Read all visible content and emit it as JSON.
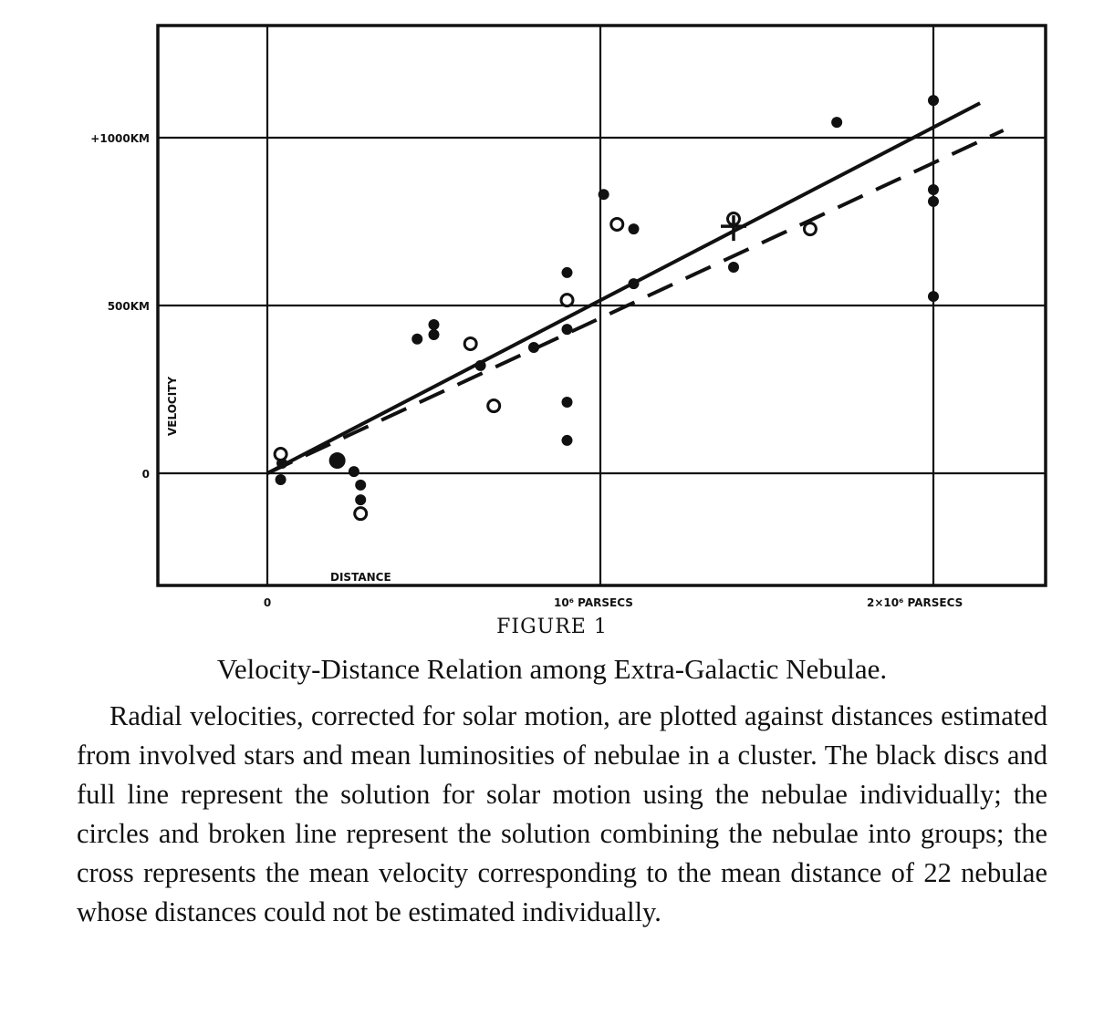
{
  "figure": {
    "label": "FIGURE 1",
    "title": "Velocity-Distance Relation among Extra-Galactic Nebulae.",
    "caption": "Radial velocities, corrected for solar motion, are plotted against distances estimated from involved stars and mean luminosities of nebulae in a cluster.  The black discs and full line represent the solution for solar motion using the nebulae individually; the circles and broken line represent the solution combining the nebulae into groups; the cross represents the mean velocity corresponding to the mean distance of 22 nebulae whose distances could not be estimated individually."
  },
  "axes": {
    "y_title": "VELOCITY",
    "x_title": "DISTANCE",
    "y_ticks": [
      {
        "value": 0,
        "label": "0"
      },
      {
        "value": 500,
        "label": "500KM"
      },
      {
        "value": 1000,
        "label": "+1000KM"
      }
    ],
    "x_ticks": [
      {
        "value": 0,
        "label": "0"
      },
      {
        "value": 1,
        "label": "10⁶ PARSECS"
      },
      {
        "value": 2,
        "label": "2×10⁶ PARSECS"
      }
    ]
  },
  "chart_data": {
    "type": "scatter",
    "title": "Velocity-Distance Relation among Extra-Galactic Nebulae.",
    "xlabel": "DISTANCE (parsecs, ×10⁶)",
    "ylabel": "VELOCITY (km/s)",
    "xlim": [
      -0.33,
      2.34
    ],
    "ylim": [
      -335,
      1340
    ],
    "grid": true,
    "legend": "none (described in caption)",
    "series": [
      {
        "name": "Black discs (nebulae individually)",
        "marker": "filled-circle",
        "points": [
          [
            0.04,
            -19
          ],
          [
            0.044,
            30
          ],
          [
            0.21,
            38
          ],
          [
            0.26,
            5
          ],
          [
            0.28,
            -35
          ],
          [
            0.28,
            -79
          ],
          [
            0.45,
            400
          ],
          [
            0.5,
            443
          ],
          [
            0.5,
            413
          ],
          [
            0.64,
            321
          ],
          [
            0.8,
            375
          ],
          [
            0.9,
            598
          ],
          [
            0.9,
            429
          ],
          [
            0.9,
            212
          ],
          [
            0.9,
            98
          ],
          [
            1.01,
            831
          ],
          [
            1.1,
            728
          ],
          [
            1.1,
            565
          ],
          [
            1.4,
            614
          ],
          [
            1.71,
            1046
          ],
          [
            2.0,
            1111
          ],
          [
            2.0,
            845
          ],
          [
            2.0,
            810
          ],
          [
            2.0,
            527
          ]
        ],
        "large_marker_index": 2
      },
      {
        "name": "Circles (nebulae combined into groups)",
        "marker": "open-circle",
        "points": [
          [
            0.04,
            57
          ],
          [
            0.28,
            -120
          ],
          [
            0.61,
            386
          ],
          [
            0.68,
            201
          ],
          [
            0.9,
            516
          ],
          [
            1.05,
            742
          ],
          [
            1.4,
            758
          ],
          [
            1.63,
            728
          ]
        ]
      },
      {
        "name": "Cross (mean of 22 nebulae)",
        "marker": "cross",
        "points": [
          [
            1.4,
            736
          ]
        ]
      },
      {
        "name": "Full line (individual solution)",
        "type": "line",
        "style": "solid",
        "points": [
          [
            0.0,
            0
          ],
          [
            2.14,
            1103
          ]
        ]
      },
      {
        "name": "Broken line (group solution)",
        "type": "line",
        "style": "dashed",
        "points": [
          [
            0.0,
            0
          ],
          [
            2.21,
            1022
          ]
        ]
      }
    ]
  }
}
